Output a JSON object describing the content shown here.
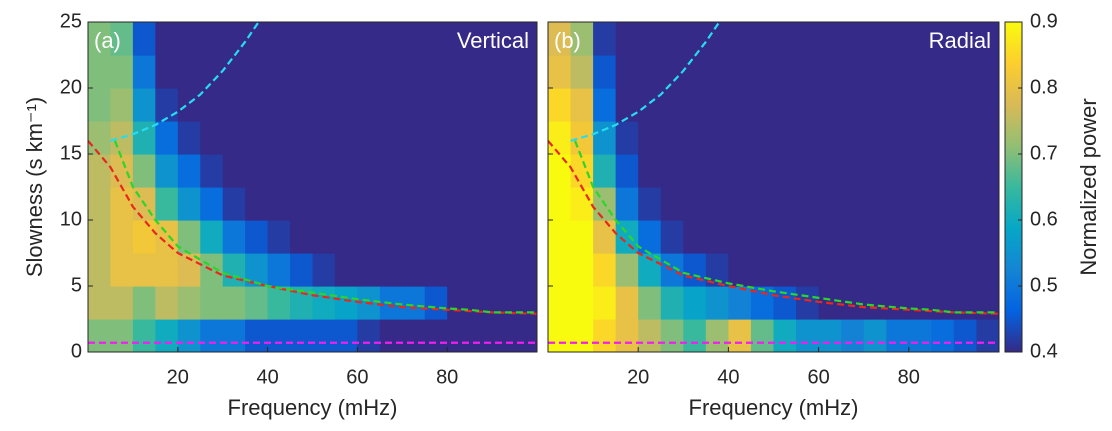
{
  "chart_data": [
    {
      "type": "heatmap",
      "label": "(a)",
      "title": "Vertical",
      "xlabel": "Frequency (mHz)",
      "ylabel": "Slowness (s km⁻¹)",
      "xlim": [
        0,
        100
      ],
      "ylim": [
        0,
        25
      ],
      "xticks": [
        20,
        40,
        60,
        80
      ],
      "yticks": [
        0,
        5,
        10,
        15,
        20,
        25
      ],
      "x": [
        2.5,
        7.5,
        12.5,
        17.5,
        22.5,
        27.5,
        32.5,
        37.5,
        42.5,
        47.5,
        52.5,
        57.5,
        62.5,
        67.5,
        72.5,
        77.5,
        82.5,
        87.5,
        92.5,
        97.5
      ],
      "y": [
        1.25,
        3.75,
        6.25,
        8.75,
        11.25,
        13.75,
        16.25,
        18.75,
        21.25,
        23.75
      ],
      "z": [
        [
          0.7,
          0.7,
          0.65,
          0.6,
          0.55,
          0.5,
          0.5,
          0.45,
          0.45,
          0.45,
          0.45,
          0.45,
          0.42,
          0.4,
          0.4,
          0.4,
          0.4,
          0.4,
          0.4,
          0.4
        ],
        [
          0.75,
          0.75,
          0.7,
          0.75,
          0.72,
          0.7,
          0.7,
          0.68,
          0.65,
          0.62,
          0.6,
          0.58,
          0.55,
          0.5,
          0.5,
          0.45,
          0.4,
          0.4,
          0.4,
          0.4
        ],
        [
          0.75,
          0.8,
          0.8,
          0.8,
          0.78,
          0.7,
          0.62,
          0.55,
          0.5,
          0.45,
          0.42,
          0.4,
          0.4,
          0.4,
          0.4,
          0.4,
          0.4,
          0.4,
          0.4,
          0.4
        ],
        [
          0.75,
          0.8,
          0.82,
          0.8,
          0.7,
          0.6,
          0.5,
          0.45,
          0.42,
          0.4,
          0.4,
          0.4,
          0.4,
          0.4,
          0.4,
          0.4,
          0.4,
          0.4,
          0.4,
          0.4
        ],
        [
          0.75,
          0.8,
          0.78,
          0.65,
          0.55,
          0.48,
          0.42,
          0.4,
          0.4,
          0.4,
          0.4,
          0.4,
          0.4,
          0.4,
          0.4,
          0.4,
          0.4,
          0.4,
          0.4,
          0.4
        ],
        [
          0.75,
          0.78,
          0.7,
          0.55,
          0.48,
          0.42,
          0.4,
          0.4,
          0.4,
          0.4,
          0.4,
          0.4,
          0.4,
          0.4,
          0.4,
          0.4,
          0.4,
          0.4,
          0.4,
          0.4
        ],
        [
          0.72,
          0.75,
          0.62,
          0.48,
          0.42,
          0.4,
          0.4,
          0.4,
          0.4,
          0.4,
          0.4,
          0.4,
          0.4,
          0.4,
          0.4,
          0.4,
          0.4,
          0.4,
          0.4,
          0.4
        ],
        [
          0.7,
          0.72,
          0.55,
          0.42,
          0.4,
          0.4,
          0.4,
          0.4,
          0.4,
          0.4,
          0.4,
          0.4,
          0.4,
          0.4,
          0.4,
          0.4,
          0.4,
          0.4,
          0.4,
          0.4
        ],
        [
          0.7,
          0.7,
          0.5,
          0.4,
          0.4,
          0.4,
          0.4,
          0.4,
          0.4,
          0.4,
          0.4,
          0.4,
          0.4,
          0.4,
          0.4,
          0.4,
          0.4,
          0.4,
          0.4,
          0.4
        ],
        [
          0.7,
          0.68,
          0.45,
          0.4,
          0.4,
          0.4,
          0.4,
          0.4,
          0.4,
          0.4,
          0.4,
          0.4,
          0.4,
          0.4,
          0.4,
          0.4,
          0.4,
          0.4,
          0.4,
          0.4
        ]
      ],
      "lines": [
        {
          "color": "#e8281e",
          "x": [
            0,
            5,
            10,
            15,
            20,
            30,
            40,
            50,
            60,
            70,
            80,
            90,
            100
          ],
          "values": [
            16,
            14,
            11,
            9,
            7.5,
            5.8,
            5,
            4.3,
            3.8,
            3.4,
            3.2,
            3.0,
            2.9
          ]
        },
        {
          "color": "#2bd62b",
          "x": [
            6,
            10,
            15,
            20,
            30,
            40,
            50,
            60,
            70,
            80,
            85,
            90,
            100
          ],
          "values": [
            16,
            12.5,
            10,
            8,
            6,
            5,
            4.5,
            4,
            3.6,
            3.3,
            3.2,
            3.0,
            3.0
          ]
        },
        {
          "color": "#27dcf0",
          "x": [
            5,
            10,
            15,
            20,
            25,
            30,
            35,
            38
          ],
          "values": [
            16,
            16.5,
            17.2,
            18.2,
            19.5,
            21.3,
            23.5,
            25
          ]
        },
        {
          "color": "#f01ef0",
          "x": [
            0,
            100
          ],
          "values": [
            0.7,
            0.7
          ]
        }
      ]
    },
    {
      "type": "heatmap",
      "label": "(b)",
      "title": "Radial",
      "xlabel": "Frequency (mHz)",
      "xlim": [
        0,
        100
      ],
      "ylim": [
        0,
        25
      ],
      "xticks": [
        20,
        40,
        60,
        80
      ],
      "yticks": [
        0,
        5,
        10,
        15,
        20,
        25
      ],
      "x": [
        2.5,
        7.5,
        12.5,
        17.5,
        22.5,
        27.5,
        32.5,
        37.5,
        42.5,
        47.5,
        52.5,
        57.5,
        62.5,
        67.5,
        72.5,
        77.5,
        82.5,
        87.5,
        92.5,
        97.5
      ],
      "y": [
        1.25,
        3.75,
        6.25,
        8.75,
        11.25,
        13.75,
        16.25,
        18.75,
        21.25,
        23.75
      ],
      "z": [
        [
          0.9,
          0.9,
          0.85,
          0.8,
          0.75,
          0.7,
          0.65,
          0.72,
          0.8,
          0.68,
          0.6,
          0.55,
          0.55,
          0.52,
          0.55,
          0.5,
          0.5,
          0.48,
          0.45,
          0.42
        ],
        [
          0.9,
          0.9,
          0.88,
          0.8,
          0.7,
          0.62,
          0.58,
          0.55,
          0.52,
          0.48,
          0.45,
          0.42,
          0.4,
          0.4,
          0.4,
          0.4,
          0.4,
          0.4,
          0.4,
          0.4
        ],
        [
          0.9,
          0.9,
          0.85,
          0.72,
          0.6,
          0.5,
          0.45,
          0.42,
          0.4,
          0.4,
          0.4,
          0.4,
          0.4,
          0.4,
          0.4,
          0.4,
          0.4,
          0.4,
          0.4,
          0.4
        ],
        [
          0.9,
          0.9,
          0.8,
          0.6,
          0.48,
          0.42,
          0.4,
          0.4,
          0.4,
          0.4,
          0.4,
          0.4,
          0.4,
          0.4,
          0.4,
          0.4,
          0.4,
          0.4,
          0.4,
          0.4
        ],
        [
          0.9,
          0.88,
          0.72,
          0.5,
          0.42,
          0.4,
          0.4,
          0.4,
          0.4,
          0.4,
          0.4,
          0.4,
          0.4,
          0.4,
          0.4,
          0.4,
          0.4,
          0.4,
          0.4,
          0.4
        ],
        [
          0.9,
          0.85,
          0.62,
          0.45,
          0.4,
          0.4,
          0.4,
          0.4,
          0.4,
          0.4,
          0.4,
          0.4,
          0.4,
          0.4,
          0.4,
          0.4,
          0.4,
          0.4,
          0.4,
          0.4
        ],
        [
          0.88,
          0.82,
          0.55,
          0.42,
          0.4,
          0.4,
          0.4,
          0.4,
          0.4,
          0.4,
          0.4,
          0.4,
          0.4,
          0.4,
          0.4,
          0.4,
          0.4,
          0.4,
          0.4,
          0.4
        ],
        [
          0.85,
          0.8,
          0.48,
          0.4,
          0.4,
          0.4,
          0.4,
          0.4,
          0.4,
          0.4,
          0.4,
          0.4,
          0.4,
          0.4,
          0.4,
          0.4,
          0.4,
          0.4,
          0.4,
          0.4
        ],
        [
          0.8,
          0.75,
          0.45,
          0.4,
          0.4,
          0.4,
          0.4,
          0.4,
          0.4,
          0.4,
          0.4,
          0.4,
          0.4,
          0.4,
          0.4,
          0.4,
          0.4,
          0.4,
          0.4,
          0.4
        ],
        [
          0.78,
          0.72,
          0.42,
          0.4,
          0.4,
          0.4,
          0.4,
          0.4,
          0.4,
          0.4,
          0.4,
          0.4,
          0.4,
          0.4,
          0.4,
          0.4,
          0.4,
          0.4,
          0.4,
          0.4
        ]
      ],
      "lines": [
        {
          "color": "#e8281e",
          "x": [
            0,
            5,
            10,
            15,
            20,
            30,
            40,
            50,
            60,
            70,
            80,
            90,
            100
          ],
          "values": [
            16,
            14,
            11,
            9,
            7.5,
            5.8,
            5,
            4.3,
            3.8,
            3.4,
            3.2,
            3.0,
            2.9
          ]
        },
        {
          "color": "#2bd62b",
          "x": [
            6,
            10,
            15,
            20,
            30,
            40,
            50,
            60,
            70,
            80,
            85,
            90,
            100
          ],
          "values": [
            16,
            12.5,
            10,
            8,
            6,
            5.2,
            4.6,
            4.1,
            3.6,
            3.3,
            3.2,
            3.0,
            3.0
          ]
        },
        {
          "color": "#27dcf0",
          "x": [
            5,
            10,
            15,
            20,
            25,
            30,
            35,
            38
          ],
          "values": [
            16,
            16.5,
            17.2,
            18.2,
            19.5,
            21.3,
            23.5,
            25
          ]
        },
        {
          "color": "#f01ef0",
          "x": [
            0,
            100
          ],
          "values": [
            0.7,
            0.7
          ]
        }
      ],
      "colorbar": {
        "label": "Normalized power",
        "clim": [
          0.4,
          0.9
        ],
        "ticks": [
          0.4,
          0.5,
          0.6,
          0.7,
          0.8,
          0.9
        ],
        "colormap": [
          "#352A87",
          "#0363E1",
          "#1485D4",
          "#06A7C6",
          "#38B99E",
          "#92BF73",
          "#D9BA56",
          "#FCCE2E",
          "#F9FB0E"
        ]
      }
    }
  ]
}
